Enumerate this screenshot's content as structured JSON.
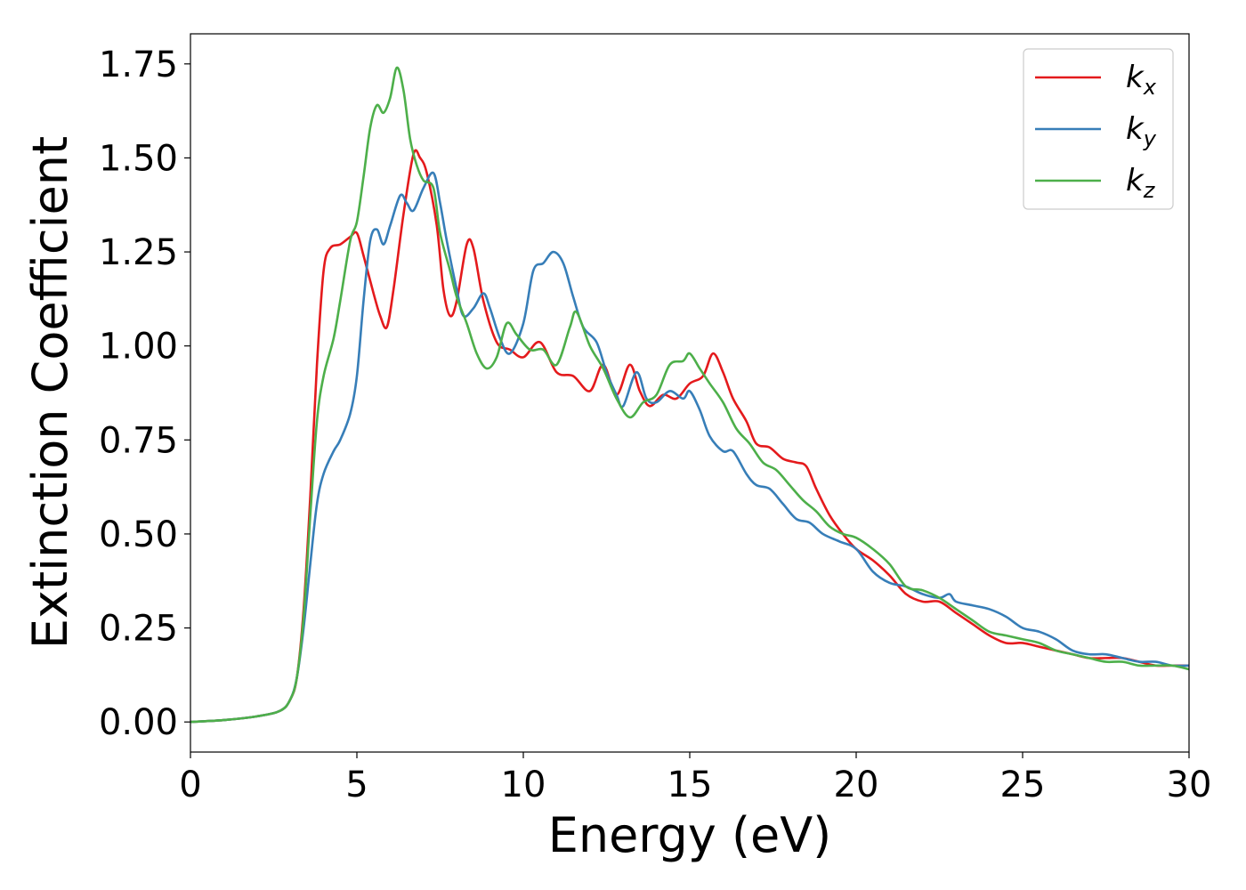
{
  "chart_data": {
    "type": "line",
    "title": "",
    "xlabel": "Energy (eV)",
    "ylabel": "Extinction Coefficient",
    "xlim": [
      0,
      30
    ],
    "ylim": [
      -0.08,
      1.83
    ],
    "xticks": [
      0,
      5,
      10,
      15,
      20,
      25,
      30
    ],
    "xtick_labels": [
      "0",
      "5",
      "10",
      "15",
      "20",
      "25",
      "30"
    ],
    "yticks": [
      0.0,
      0.25,
      0.5,
      0.75,
      1.0,
      1.25,
      1.5,
      1.75
    ],
    "ytick_labels": [
      "0.00",
      "0.25",
      "0.50",
      "0.75",
      "1.00",
      "1.25",
      "1.50",
      "1.75"
    ],
    "grid": false,
    "legend_position": "top-right",
    "series": [
      {
        "name": "k_x",
        "label_base": "k",
        "label_sub": "x",
        "color": "#e41a1c",
        "points": [
          [
            0,
            0
          ],
          [
            1,
            0.005
          ],
          [
            2,
            0.015
          ],
          [
            2.7,
            0.03
          ],
          [
            3,
            0.06
          ],
          [
            3.2,
            0.12
          ],
          [
            3.4,
            0.3
          ],
          [
            3.6,
            0.6
          ],
          [
            3.8,
            0.95
          ],
          [
            4,
            1.2
          ],
          [
            4.2,
            1.26
          ],
          [
            4.5,
            1.27
          ],
          [
            4.8,
            1.29
          ],
          [
            5,
            1.3
          ],
          [
            5.2,
            1.24
          ],
          [
            5.5,
            1.14
          ],
          [
            5.7,
            1.08
          ],
          [
            5.9,
            1.05
          ],
          [
            6.1,
            1.15
          ],
          [
            6.4,
            1.35
          ],
          [
            6.7,
            1.51
          ],
          [
            6.9,
            1.5
          ],
          [
            7.1,
            1.46
          ],
          [
            7.4,
            1.32
          ],
          [
            7.6,
            1.15
          ],
          [
            7.8,
            1.08
          ],
          [
            8,
            1.12
          ],
          [
            8.3,
            1.27
          ],
          [
            8.5,
            1.26
          ],
          [
            8.8,
            1.12
          ],
          [
            9.2,
            1.01
          ],
          [
            9.6,
            0.99
          ],
          [
            10,
            0.97
          ],
          [
            10.5,
            1.01
          ],
          [
            11,
            0.93
          ],
          [
            11.5,
            0.92
          ],
          [
            12,
            0.88
          ],
          [
            12.4,
            0.95
          ],
          [
            12.8,
            0.87
          ],
          [
            13.2,
            0.95
          ],
          [
            13.5,
            0.88
          ],
          [
            13.8,
            0.84
          ],
          [
            14.2,
            0.87
          ],
          [
            14.6,
            0.86
          ],
          [
            15,
            0.9
          ],
          [
            15.4,
            0.92
          ],
          [
            15.7,
            0.98
          ],
          [
            16,
            0.93
          ],
          [
            16.3,
            0.86
          ],
          [
            16.7,
            0.8
          ],
          [
            17,
            0.74
          ],
          [
            17.4,
            0.73
          ],
          [
            17.8,
            0.7
          ],
          [
            18.2,
            0.69
          ],
          [
            18.5,
            0.68
          ],
          [
            18.8,
            0.62
          ],
          [
            19.2,
            0.55
          ],
          [
            19.6,
            0.5
          ],
          [
            20,
            0.46
          ],
          [
            20.5,
            0.43
          ],
          [
            21,
            0.39
          ],
          [
            21.5,
            0.34
          ],
          [
            22,
            0.32
          ],
          [
            22.5,
            0.32
          ],
          [
            23,
            0.29
          ],
          [
            23.5,
            0.26
          ],
          [
            24,
            0.23
          ],
          [
            24.5,
            0.21
          ],
          [
            25,
            0.21
          ],
          [
            25.5,
            0.2
          ],
          [
            26,
            0.19
          ],
          [
            26.5,
            0.18
          ],
          [
            27,
            0.17
          ],
          [
            27.5,
            0.17
          ],
          [
            28,
            0.17
          ],
          [
            28.5,
            0.16
          ],
          [
            29,
            0.15
          ],
          [
            29.5,
            0.15
          ],
          [
            30,
            0.15
          ]
        ]
      },
      {
        "name": "k_y",
        "label_base": "k",
        "label_sub": "y",
        "color": "#377eb8",
        "points": [
          [
            0,
            0
          ],
          [
            1,
            0.005
          ],
          [
            2,
            0.015
          ],
          [
            2.7,
            0.03
          ],
          [
            3,
            0.06
          ],
          [
            3.2,
            0.12
          ],
          [
            3.4,
            0.25
          ],
          [
            3.6,
            0.42
          ],
          [
            3.8,
            0.58
          ],
          [
            4,
            0.66
          ],
          [
            4.3,
            0.72
          ],
          [
            4.5,
            0.75
          ],
          [
            4.8,
            0.82
          ],
          [
            5,
            0.92
          ],
          [
            5.2,
            1.12
          ],
          [
            5.4,
            1.28
          ],
          [
            5.6,
            1.31
          ],
          [
            5.8,
            1.27
          ],
          [
            6,
            1.32
          ],
          [
            6.3,
            1.4
          ],
          [
            6.5,
            1.38
          ],
          [
            6.7,
            1.36
          ],
          [
            7,
            1.42
          ],
          [
            7.3,
            1.46
          ],
          [
            7.5,
            1.38
          ],
          [
            7.7,
            1.28
          ],
          [
            8,
            1.15
          ],
          [
            8.2,
            1.08
          ],
          [
            8.5,
            1.1
          ],
          [
            8.8,
            1.14
          ],
          [
            9,
            1.1
          ],
          [
            9.3,
            1.02
          ],
          [
            9.6,
            0.98
          ],
          [
            10,
            1.06
          ],
          [
            10.3,
            1.2
          ],
          [
            10.6,
            1.22
          ],
          [
            10.9,
            1.25
          ],
          [
            11.2,
            1.22
          ],
          [
            11.5,
            1.13
          ],
          [
            11.8,
            1.05
          ],
          [
            12.2,
            1.01
          ],
          [
            12.5,
            0.93
          ],
          [
            12.8,
            0.87
          ],
          [
            13,
            0.84
          ],
          [
            13.4,
            0.93
          ],
          [
            13.7,
            0.86
          ],
          [
            14,
            0.85
          ],
          [
            14.4,
            0.88
          ],
          [
            14.8,
            0.86
          ],
          [
            15,
            0.88
          ],
          [
            15.3,
            0.83
          ],
          [
            15.6,
            0.76
          ],
          [
            16,
            0.72
          ],
          [
            16.3,
            0.72
          ],
          [
            16.7,
            0.66
          ],
          [
            17,
            0.63
          ],
          [
            17.4,
            0.62
          ],
          [
            17.8,
            0.58
          ],
          [
            18.2,
            0.54
          ],
          [
            18.6,
            0.53
          ],
          [
            19,
            0.5
          ],
          [
            19.5,
            0.48
          ],
          [
            20,
            0.46
          ],
          [
            20.5,
            0.4
          ],
          [
            21,
            0.37
          ],
          [
            21.5,
            0.36
          ],
          [
            22,
            0.34
          ],
          [
            22.5,
            0.33
          ],
          [
            22.8,
            0.34
          ],
          [
            23,
            0.32
          ],
          [
            23.5,
            0.31
          ],
          [
            24,
            0.3
          ],
          [
            24.5,
            0.28
          ],
          [
            25,
            0.25
          ],
          [
            25.5,
            0.24
          ],
          [
            26,
            0.22
          ],
          [
            26.5,
            0.19
          ],
          [
            27,
            0.18
          ],
          [
            27.5,
            0.18
          ],
          [
            28,
            0.17
          ],
          [
            28.5,
            0.16
          ],
          [
            29,
            0.16
          ],
          [
            29.5,
            0.15
          ],
          [
            30,
            0.15
          ]
        ]
      },
      {
        "name": "k_z",
        "label_base": "k",
        "label_sub": "z",
        "color": "#4daf4a",
        "points": [
          [
            0,
            0
          ],
          [
            1,
            0.005
          ],
          [
            2,
            0.015
          ],
          [
            2.7,
            0.03
          ],
          [
            3,
            0.06
          ],
          [
            3.2,
            0.12
          ],
          [
            3.4,
            0.28
          ],
          [
            3.6,
            0.55
          ],
          [
            3.8,
            0.8
          ],
          [
            4,
            0.92
          ],
          [
            4.3,
            1.02
          ],
          [
            4.5,
            1.12
          ],
          [
            4.8,
            1.28
          ],
          [
            5,
            1.33
          ],
          [
            5.2,
            1.45
          ],
          [
            5.4,
            1.58
          ],
          [
            5.6,
            1.64
          ],
          [
            5.8,
            1.62
          ],
          [
            6,
            1.66
          ],
          [
            6.2,
            1.74
          ],
          [
            6.4,
            1.68
          ],
          [
            6.6,
            1.55
          ],
          [
            6.8,
            1.48
          ],
          [
            7,
            1.44
          ],
          [
            7.3,
            1.42
          ],
          [
            7.5,
            1.3
          ],
          [
            7.8,
            1.2
          ],
          [
            8,
            1.13
          ],
          [
            8.3,
            1.06
          ],
          [
            8.6,
            0.98
          ],
          [
            8.9,
            0.94
          ],
          [
            9.2,
            0.97
          ],
          [
            9.5,
            1.06
          ],
          [
            9.8,
            1.03
          ],
          [
            10.2,
            0.99
          ],
          [
            10.6,
            0.99
          ],
          [
            11,
            0.95
          ],
          [
            11.4,
            1.05
          ],
          [
            11.6,
            1.09
          ],
          [
            12,
            1.0
          ],
          [
            12.4,
            0.94
          ],
          [
            12.8,
            0.86
          ],
          [
            13.2,
            0.81
          ],
          [
            13.6,
            0.85
          ],
          [
            14,
            0.87
          ],
          [
            14.4,
            0.95
          ],
          [
            14.8,
            0.96
          ],
          [
            15,
            0.98
          ],
          [
            15.3,
            0.94
          ],
          [
            15.6,
            0.9
          ],
          [
            16,
            0.85
          ],
          [
            16.4,
            0.78
          ],
          [
            16.8,
            0.74
          ],
          [
            17.2,
            0.69
          ],
          [
            17.6,
            0.67
          ],
          [
            18,
            0.63
          ],
          [
            18.4,
            0.59
          ],
          [
            18.8,
            0.56
          ],
          [
            19.2,
            0.52
          ],
          [
            19.6,
            0.5
          ],
          [
            20,
            0.49
          ],
          [
            20.5,
            0.46
          ],
          [
            21,
            0.42
          ],
          [
            21.5,
            0.36
          ],
          [
            22,
            0.35
          ],
          [
            22.5,
            0.33
          ],
          [
            23,
            0.3
          ],
          [
            23.5,
            0.27
          ],
          [
            24,
            0.24
          ],
          [
            24.5,
            0.23
          ],
          [
            25,
            0.22
          ],
          [
            25.5,
            0.21
          ],
          [
            26,
            0.19
          ],
          [
            26.5,
            0.18
          ],
          [
            27,
            0.17
          ],
          [
            27.5,
            0.16
          ],
          [
            28,
            0.16
          ],
          [
            28.5,
            0.15
          ],
          [
            29,
            0.15
          ],
          [
            29.5,
            0.15
          ],
          [
            30,
            0.14
          ]
        ]
      }
    ]
  }
}
